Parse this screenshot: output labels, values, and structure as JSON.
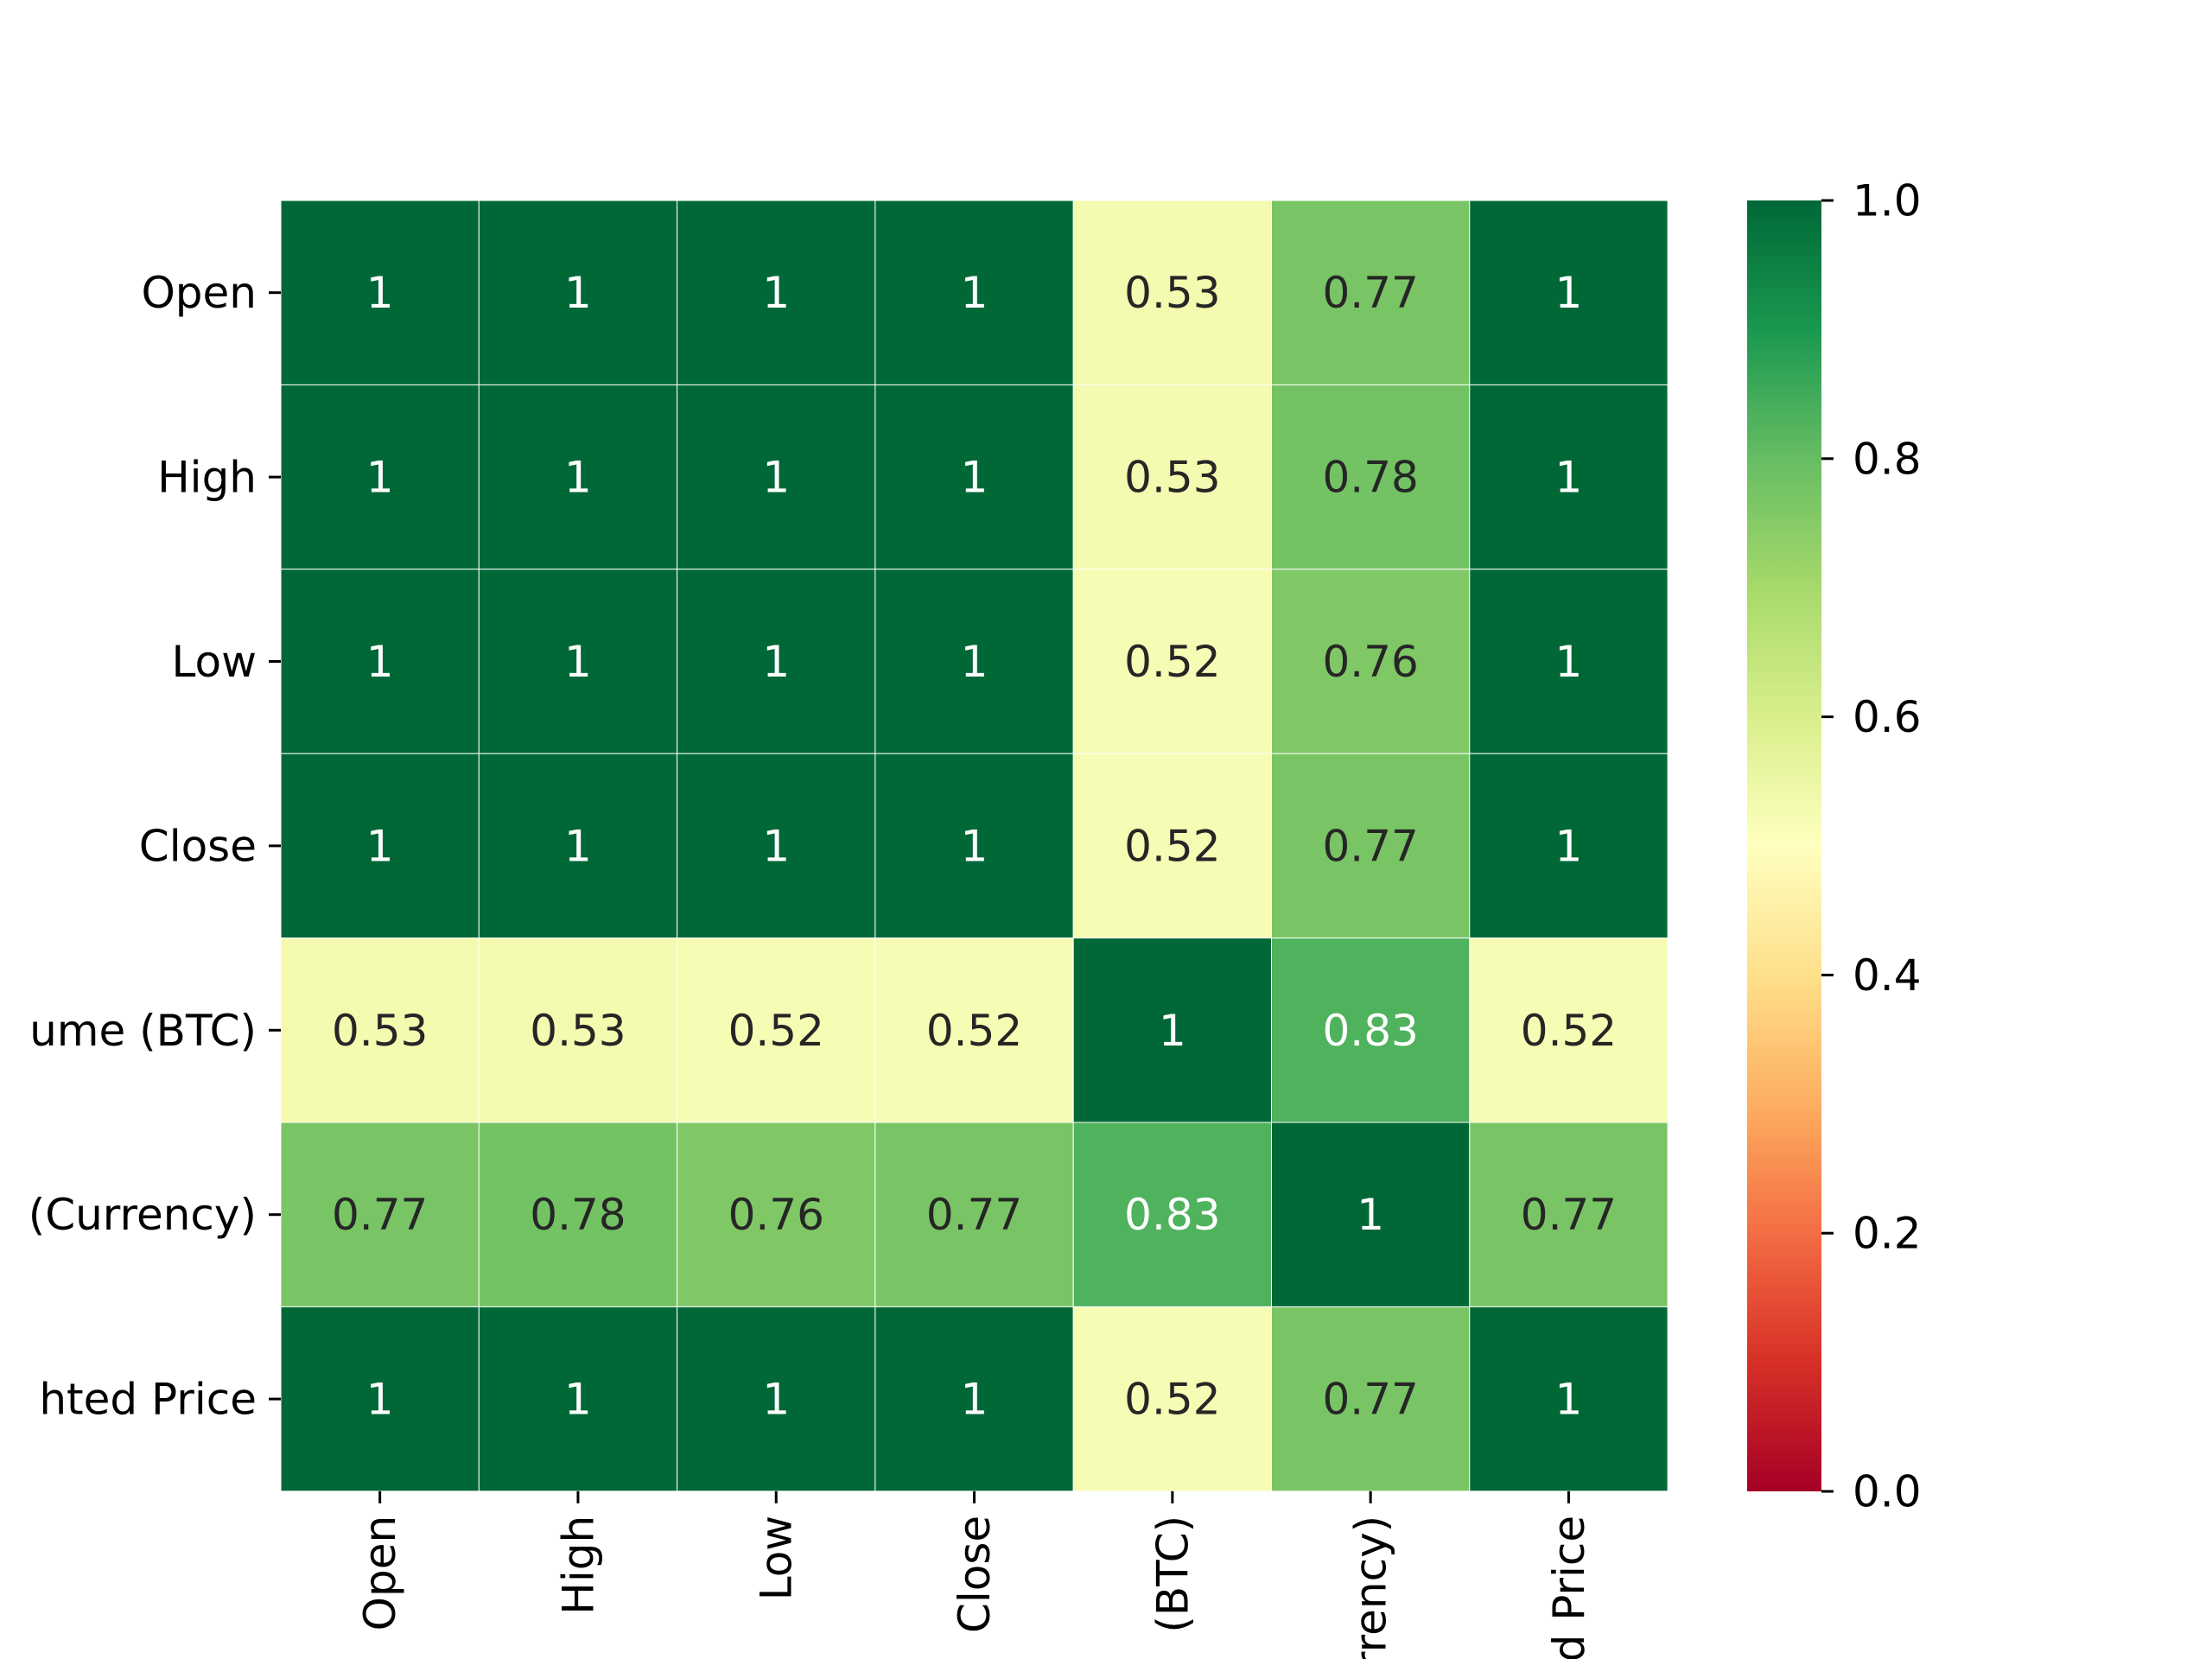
{
  "chart_data": {
    "type": "heatmap",
    "row_labels": [
      "Open",
      "High",
      "Low",
      "Close",
      "ume (BTC)",
      "(Currency)",
      "hted Price"
    ],
    "col_labels": [
      "Open",
      "High",
      "Low",
      "Close",
      "(BTC)",
      "rrency)",
      "d Price"
    ],
    "values": [
      [
        1,
        1,
        1,
        1,
        0.53,
        0.77,
        1
      ],
      [
        1,
        1,
        1,
        1,
        0.53,
        0.78,
        1
      ],
      [
        1,
        1,
        1,
        1,
        0.52,
        0.76,
        1
      ],
      [
        1,
        1,
        1,
        1,
        0.52,
        0.77,
        1
      ],
      [
        0.53,
        0.53,
        0.52,
        0.52,
        1,
        0.83,
        0.52
      ],
      [
        0.77,
        0.78,
        0.76,
        0.77,
        0.83,
        1,
        0.77
      ],
      [
        1,
        1,
        1,
        1,
        0.52,
        0.77,
        1
      ]
    ],
    "annotations": [
      [
        "1",
        "1",
        "1",
        "1",
        "0.53",
        "0.77",
        "1"
      ],
      [
        "1",
        "1",
        "1",
        "1",
        "0.53",
        "0.78",
        "1"
      ],
      [
        "1",
        "1",
        "1",
        "1",
        "0.52",
        "0.76",
        "1"
      ],
      [
        "1",
        "1",
        "1",
        "1",
        "0.52",
        "0.77",
        "1"
      ],
      [
        "0.53",
        "0.53",
        "0.52",
        "0.52",
        "1",
        "0.83",
        "0.52"
      ],
      [
        "0.77",
        "0.78",
        "0.76",
        "0.77",
        "0.83",
        "1",
        "0.77"
      ],
      [
        "1",
        "1",
        "1",
        "1",
        "0.52",
        "0.77",
        "1"
      ]
    ],
    "colorbar": {
      "colormap": "RdYlGn",
      "vmin": 0,
      "vmax": 1,
      "ticks": [
        "0.0",
        "0.2",
        "0.4",
        "0.6",
        "0.8",
        "1.0"
      ],
      "tick_values": [
        0,
        0.2,
        0.4,
        0.6,
        0.8,
        1.0
      ]
    },
    "colors": {
      "cell_border": "#ffffff",
      "annotation_light": "#ffffff",
      "annotation_dark": "#262626"
    }
  }
}
